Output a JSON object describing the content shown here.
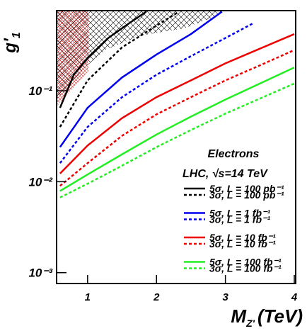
{
  "chart_data": {
    "type": "line",
    "y_label": [
      "g'",
      "1"
    ],
    "x_label": [
      "M",
      "Z'",
      "(TeV)"
    ],
    "legend_title": "Electrons",
    "legend_subtitle": "LHC, √s=14 TeV",
    "xlim": [
      0.55,
      4.02
    ],
    "xticks": [
      1,
      2,
      3,
      4
    ],
    "ylim": [
      0.00076,
      0.76
    ],
    "log_y": true,
    "yticks": [
      {
        "value": 0.1,
        "label": "10⁻¹"
      },
      {
        "value": 0.01,
        "label": "10⁻²"
      },
      {
        "value": 0.001,
        "label": "10⁻³"
      }
    ],
    "series": [
      {
        "name": "5σ, L = 100 pb⁻¹",
        "color": "#000000",
        "style": "solid",
        "x": [
          0.6,
          0.8,
          1.0,
          1.3,
          1.6,
          1.85
        ],
        "values": [
          0.065,
          0.15,
          0.23,
          0.38,
          0.55,
          0.74
        ]
      },
      {
        "name": "3σ, L = 100 pb⁻¹",
        "color": "#000000",
        "style": "dotted",
        "x": [
          0.6,
          1.0,
          1.5,
          2.0,
          2.3
        ],
        "values": [
          0.04,
          0.13,
          0.3,
          0.52,
          0.72
        ]
      },
      {
        "name": "5σ, L = 1 fb⁻¹",
        "color": "#0000ee",
        "style": "solid",
        "x": [
          0.6,
          1.0,
          1.5,
          2.0,
          2.5,
          2.95
        ],
        "values": [
          0.024,
          0.065,
          0.14,
          0.25,
          0.42,
          0.74
        ]
      },
      {
        "name": "3σ, L = 1 fb⁻¹",
        "color": "#0000ee",
        "style": "dotted",
        "x": [
          0.6,
          1.0,
          1.5,
          2.0,
          2.5,
          3.0,
          3.4
        ],
        "values": [
          0.016,
          0.04,
          0.085,
          0.15,
          0.24,
          0.38,
          0.55
        ]
      },
      {
        "name": "5σ, L = 10 fb⁻¹",
        "color": "#ee0000",
        "style": "solid",
        "x": [
          0.6,
          1.0,
          1.5,
          2.0,
          2.5,
          3.0,
          3.5,
          4.0
        ],
        "values": [
          0.0123,
          0.025,
          0.05,
          0.085,
          0.13,
          0.2,
          0.29,
          0.42
        ]
      },
      {
        "name": "3σ, L = 10 fb⁻¹",
        "color": "#ee0000",
        "style": "dotted",
        "x": [
          0.6,
          1.0,
          1.5,
          2.0,
          2.5,
          3.0,
          3.5,
          4.0
        ],
        "values": [
          0.009,
          0.016,
          0.032,
          0.055,
          0.085,
          0.13,
          0.19,
          0.28
        ]
      },
      {
        "name": "5σ, L = 100 fb⁻¹",
        "color": "#22ee22",
        "style": "solid",
        "x": [
          0.6,
          1.0,
          1.5,
          2.0,
          2.5,
          3.0,
          3.5,
          4.0
        ],
        "values": [
          0.0079,
          0.012,
          0.02,
          0.033,
          0.052,
          0.08,
          0.12,
          0.18
        ]
      },
      {
        "name": "3σ, L = 100 fb⁻¹",
        "color": "#22ee22",
        "style": "dotted",
        "x": [
          0.6,
          1.0,
          1.5,
          2.0,
          2.5,
          3.0,
          3.5,
          4.0
        ],
        "values": [
          0.0067,
          0.0095,
          0.015,
          0.024,
          0.037,
          0.056,
          0.082,
          0.12
        ]
      }
    ]
  }
}
